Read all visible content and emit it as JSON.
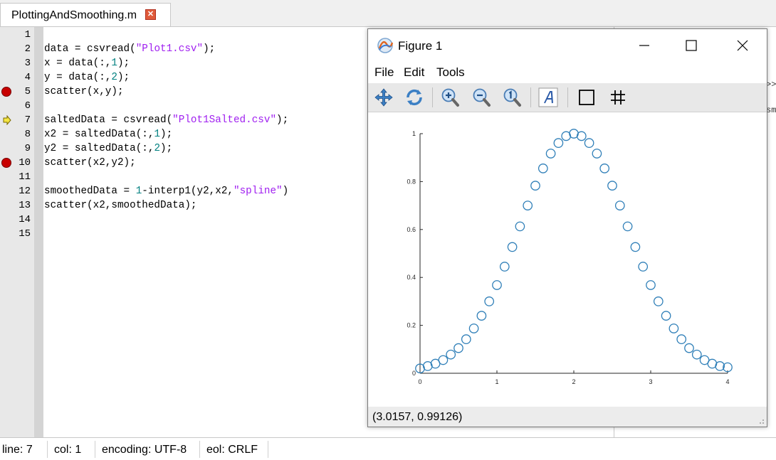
{
  "tab": {
    "label": "PlottingAndSmoothing.m",
    "close": "✕"
  },
  "editor": {
    "lines": [
      {
        "n": "1",
        "parts": []
      },
      {
        "n": "2",
        "parts": [
          {
            "t": "data = csvread("
          },
          {
            "t": "\"Plot1.csv\"",
            "k": "str"
          },
          {
            "t": ");"
          }
        ]
      },
      {
        "n": "3",
        "parts": [
          {
            "t": "x = data(:,"
          },
          {
            "t": "1",
            "k": "num"
          },
          {
            "t": ");"
          }
        ]
      },
      {
        "n": "4",
        "parts": [
          {
            "t": "y = data(:,"
          },
          {
            "t": "2",
            "k": "num"
          },
          {
            "t": ");"
          }
        ]
      },
      {
        "n": "5",
        "parts": [
          {
            "t": "scatter(x,y);"
          }
        ],
        "marker": "breakpoint"
      },
      {
        "n": "6",
        "parts": []
      },
      {
        "n": "7",
        "parts": [
          {
            "t": "saltedData = csvread("
          },
          {
            "t": "\"Plot1Salted.csv\"",
            "k": "str"
          },
          {
            "t": ");"
          }
        ],
        "marker": "current-line"
      },
      {
        "n": "8",
        "parts": [
          {
            "t": "x2 = saltedData(:,"
          },
          {
            "t": "1",
            "k": "num"
          },
          {
            "t": ");"
          }
        ]
      },
      {
        "n": "9",
        "parts": [
          {
            "t": "y2 = saltedData(:,"
          },
          {
            "t": "2",
            "k": "num"
          },
          {
            "t": ");"
          }
        ]
      },
      {
        "n": "10",
        "parts": [
          {
            "t": "scatter(x2,y2);"
          }
        ],
        "marker": "breakpoint"
      },
      {
        "n": "11",
        "parts": []
      },
      {
        "n": "12",
        "parts": [
          {
            "t": "smoothedData = "
          },
          {
            "t": "1",
            "k": "num"
          },
          {
            "t": "-interp1(y2,x2,"
          },
          {
            "t": "\"spline\"",
            "k": "str"
          },
          {
            "t": ")"
          }
        ]
      },
      {
        "n": "13",
        "parts": [
          {
            "t": "scatter(x2,smoothedData);"
          }
        ]
      },
      {
        "n": "14",
        "parts": []
      },
      {
        "n": "15",
        "parts": []
      }
    ]
  },
  "right_panel": {
    "text1": ">>",
    "text2": "sm"
  },
  "status": {
    "line_label": "line:",
    "line_value": "7",
    "col_label": "col:",
    "col_value": "1",
    "encoding_label": "encoding:",
    "encoding_value": "UTF-8",
    "eol_label": "eol:",
    "eol_value": "CRLF"
  },
  "figure": {
    "title": "Figure 1",
    "menu": [
      "File",
      "Edit",
      "Tools"
    ],
    "toolbar": [
      "pan-icon",
      "rotate-icon",
      "zoom-in-icon",
      "zoom-out-icon",
      "zoom-reset-icon",
      "text-icon",
      "box-icon",
      "grid-icon"
    ],
    "coords": "(3.0157, 0.99126)"
  },
  "chart_data": {
    "type": "scatter",
    "xlim": [
      0,
      4
    ],
    "ylim": [
      0,
      1
    ],
    "xticks": [
      0,
      1,
      2,
      3,
      4
    ],
    "yticks": [
      0,
      0.2,
      0.4,
      0.6,
      0.8,
      1
    ],
    "xtick_labels": [
      "0",
      "1",
      "2",
      "3",
      "4"
    ],
    "ytick_labels": [
      "0",
      "0.2",
      "0.4",
      "0.6",
      "0.8",
      "1"
    ],
    "marker": "open-circle",
    "color": "#2f7fb8",
    "points": [
      [
        0.0,
        0.02
      ],
      [
        0.1,
        0.03
      ],
      [
        0.2,
        0.04
      ],
      [
        0.3,
        0.055
      ],
      [
        0.4,
        0.078
      ],
      [
        0.5,
        0.105
      ],
      [
        0.6,
        0.142
      ],
      [
        0.7,
        0.187
      ],
      [
        0.8,
        0.24
      ],
      [
        0.9,
        0.3
      ],
      [
        1.0,
        0.368
      ],
      [
        1.1,
        0.445
      ],
      [
        1.2,
        0.527
      ],
      [
        1.3,
        0.613
      ],
      [
        1.4,
        0.7
      ],
      [
        1.5,
        0.783
      ],
      [
        1.6,
        0.855
      ],
      [
        1.7,
        0.917
      ],
      [
        1.8,
        0.961
      ],
      [
        1.9,
        0.99
      ],
      [
        2.0,
        1.0
      ],
      [
        2.1,
        0.99
      ],
      [
        2.2,
        0.961
      ],
      [
        2.3,
        0.917
      ],
      [
        2.4,
        0.855
      ],
      [
        2.5,
        0.783
      ],
      [
        2.6,
        0.7
      ],
      [
        2.7,
        0.613
      ],
      [
        2.8,
        0.527
      ],
      [
        2.9,
        0.445
      ],
      [
        3.0,
        0.368
      ],
      [
        3.1,
        0.3
      ],
      [
        3.2,
        0.24
      ],
      [
        3.3,
        0.187
      ],
      [
        3.4,
        0.142
      ],
      [
        3.5,
        0.105
      ],
      [
        3.6,
        0.078
      ],
      [
        3.7,
        0.055
      ],
      [
        3.8,
        0.04
      ],
      [
        3.9,
        0.03
      ],
      [
        4.0,
        0.025
      ]
    ],
    "grid": false,
    "title": "",
    "xlabel": "",
    "ylabel": ""
  }
}
